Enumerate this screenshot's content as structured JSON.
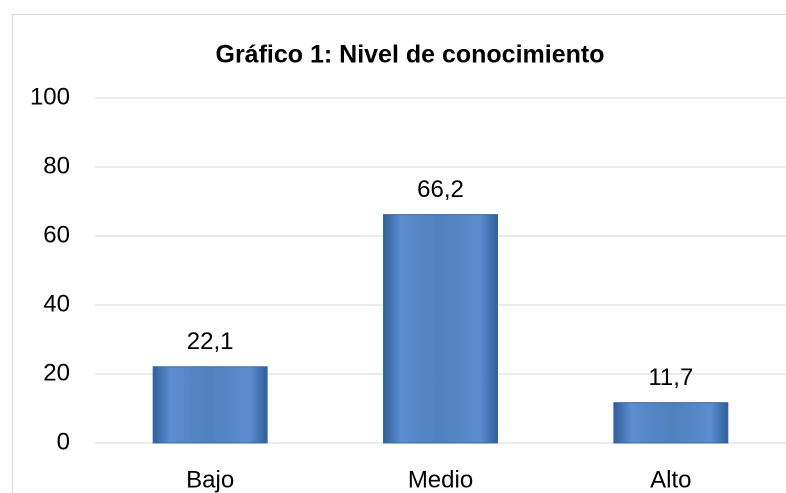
{
  "chart_data": {
    "type": "bar",
    "title": "Gráfico 1: Nivel de conocimiento",
    "categories": [
      "Bajo",
      "Medio",
      "Alto"
    ],
    "values": [
      22.1,
      66.2,
      11.7
    ],
    "value_labels": [
      "22,1",
      "66,2",
      "11,7"
    ],
    "color": "#4f81bd",
    "ylim": [
      0,
      100
    ],
    "yticks": [
      0,
      20,
      40,
      60,
      80,
      100
    ],
    "grid": true
  }
}
